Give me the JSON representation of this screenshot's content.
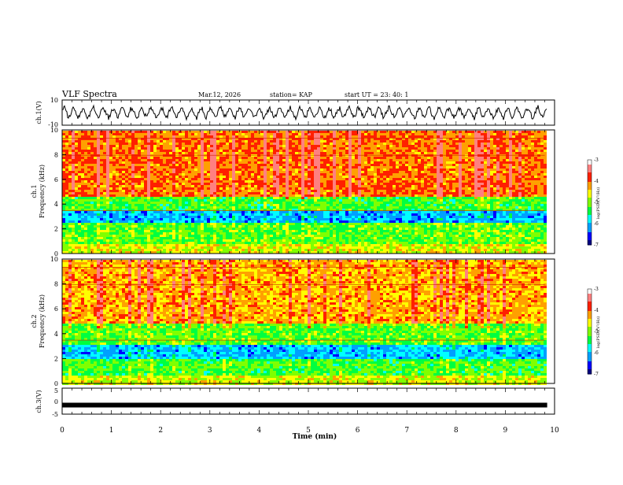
{
  "header": {
    "title": "VLF Spectra",
    "date": "Mar.12, 2026",
    "station": "station= KAP",
    "start_ut": "start UT =   23: 40: 1"
  },
  "colors": {
    "palette": [
      "#000080",
      "#0000ff",
      "#00a0ff",
      "#00ffff",
      "#00ff40",
      "#80ff00",
      "#ffff00",
      "#ffa000",
      "#ff2000",
      "#ff8080",
      "#ffffff"
    ],
    "waveform": "#000000",
    "axis": "#000000"
  },
  "chart_data": [
    {
      "id": "ch1-waveform",
      "type": "line",
      "ylabel": "ch.1(V)",
      "ylim": [
        -10,
        10
      ],
      "yticks": [
        "10",
        "-10"
      ],
      "xlim": [
        0,
        10
      ],
      "series": [
        {
          "name": "ch.1",
          "description": "broadband waveform, roughly -5 to 5 V",
          "amplitude": 5
        }
      ]
    },
    {
      "id": "ch1-spectrogram",
      "type": "heatmap",
      "ylabel_channel": "ch.1",
      "ylabel": "Frequency (kHz)",
      "ylim": [
        0,
        10
      ],
      "yticks": [
        "0",
        "2",
        "4",
        "6",
        "8",
        "10"
      ],
      "xlim": [
        0,
        10
      ],
      "data_end_min": 9.8,
      "colorbar": {
        "label": "log(PSD)(V²/Hz)",
        "range": [
          -7,
          -3
        ],
        "ticks": [
          "-3",
          "-4",
          "-5",
          "-6",
          "-7"
        ]
      },
      "bands": [
        {
          "from": 0.0,
          "to": 0.8,
          "level": 0.58
        },
        {
          "from": 0.8,
          "to": 2.6,
          "level": 0.46
        },
        {
          "from": 2.6,
          "to": 3.5,
          "level": 0.22
        },
        {
          "from": 3.5,
          "to": 4.8,
          "level": 0.44
        },
        {
          "from": 4.8,
          "to": 10.0,
          "level": 0.74
        }
      ]
    },
    {
      "id": "ch2-spectrogram",
      "type": "heatmap",
      "ylabel_channel": "ch.2",
      "ylabel": "Frequency (kHz)",
      "ylim": [
        0,
        10
      ],
      "yticks": [
        "0",
        "2",
        "4",
        "6",
        "8",
        "10"
      ],
      "xlim": [
        0,
        10
      ],
      "data_end_min": 9.8,
      "colorbar": {
        "label": "log(PSD)(V²/Hz)",
        "range": [
          -7,
          -3
        ],
        "ticks": [
          "-3",
          "-4",
          "-5",
          "-6",
          "-7"
        ]
      },
      "bands": [
        {
          "from": 0.0,
          "to": 0.8,
          "level": 0.56
        },
        {
          "from": 0.8,
          "to": 2.0,
          "level": 0.44
        },
        {
          "from": 2.0,
          "to": 3.3,
          "level": 0.24
        },
        {
          "from": 3.3,
          "to": 5.0,
          "level": 0.46
        },
        {
          "from": 5.0,
          "to": 10.0,
          "level": 0.68
        }
      ]
    },
    {
      "id": "ch3-signal",
      "type": "line",
      "ylabel": "ch.3(V)",
      "ylim": [
        -5,
        5
      ],
      "yticks": [
        "5",
        "0",
        "-5"
      ],
      "xlim": [
        0,
        10
      ],
      "series": [
        {
          "name": "ch.3",
          "description": "thick constant trace near -1.5 V",
          "value": -1.5
        }
      ]
    }
  ],
  "x_axis": {
    "label": "Time (min)",
    "ticks": [
      "0",
      "1",
      "2",
      "3",
      "4",
      "5",
      "6",
      "7",
      "8",
      "9",
      "10"
    ]
  }
}
